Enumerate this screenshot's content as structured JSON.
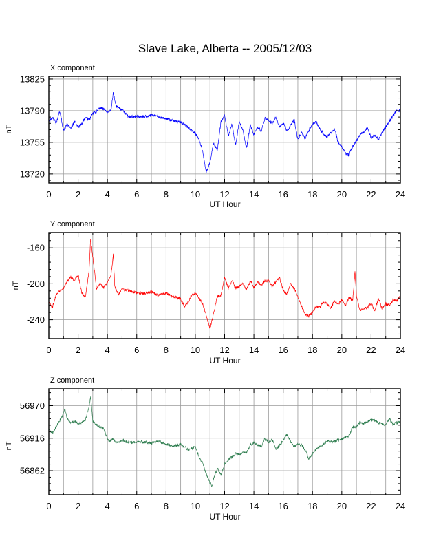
{
  "title": "Slave Lake, Alberta -- 2005/12/03",
  "chart_data": [
    {
      "type": "line",
      "panel_title": "X component",
      "xlabel": "UT Hour",
      "ylabel": "nT",
      "xlim": [
        0,
        24
      ],
      "ylim": [
        13710,
        13828
      ],
      "xticks": [
        0,
        2,
        4,
        6,
        8,
        10,
        12,
        14,
        16,
        18,
        20,
        22,
        24
      ],
      "yticks": [
        13825,
        13790,
        13755,
        13720
      ],
      "grid": true,
      "color": "#0000ff",
      "series": [
        {
          "x": [
            0,
            0.25,
            0.5,
            0.75,
            1,
            1.25,
            1.5,
            1.75,
            2,
            2.25,
            2.5,
            2.75,
            3,
            3.25,
            3.5,
            3.75,
            4,
            4.25,
            4.4,
            4.6,
            5,
            5.5,
            6,
            6.5,
            7,
            7.5,
            8,
            8.5,
            9,
            9.5,
            10,
            10.25,
            10.5,
            10.75,
            11,
            11.25,
            11.5,
            11.75,
            12,
            12.25,
            12.5,
            12.75,
            13,
            13.25,
            13.5,
            13.75,
            14,
            14.25,
            14.5,
            14.75,
            15,
            15.25,
            15.5,
            15.75,
            16,
            16.25,
            16.5,
            16.75,
            17,
            17.25,
            17.5,
            17.75,
            18,
            18.25,
            18.5,
            18.75,
            19,
            19.25,
            19.5,
            19.75,
            20,
            20.25,
            20.5,
            20.75,
            21,
            21.25,
            21.5,
            21.75,
            22,
            22.25,
            22.5,
            22.75,
            23,
            23.25,
            23.5,
            23.75,
            24
          ],
          "values": [
            13777,
            13783,
            13776,
            13790,
            13768,
            13775,
            13770,
            13778,
            13772,
            13776,
            13782,
            13780,
            13787,
            13789,
            13793,
            13792,
            13788,
            13791,
            13810,
            13795,
            13791,
            13783,
            13784,
            13783,
            13785,
            13783,
            13781,
            13779,
            13777,
            13772,
            13765,
            13758,
            13745,
            13722,
            13733,
            13754,
            13746,
            13778,
            13785,
            13762,
            13775,
            13752,
            13778,
            13768,
            13748,
            13774,
            13764,
            13772,
            13767,
            13782,
            13779,
            13776,
            13782,
            13772,
            13777,
            13768,
            13773,
            13780,
            13758,
            13766,
            13760,
            13768,
            13775,
            13778,
            13770,
            13764,
            13761,
            13766,
            13770,
            13755,
            13750,
            13743,
            13741,
            13751,
            13757,
            13764,
            13766,
            13771,
            13760,
            13763,
            13758,
            13766,
            13772,
            13778,
            13784,
            13791,
            13789
          ]
        }
      ]
    },
    {
      "type": "line",
      "panel_title": "Y component",
      "xlabel": "UT Hour",
      "ylabel": "nT",
      "xlim": [
        0,
        24
      ],
      "ylim": [
        -261,
        -143
      ],
      "xticks": [
        0,
        2,
        4,
        6,
        8,
        10,
        12,
        14,
        16,
        18,
        20,
        22,
        24
      ],
      "yticks": [
        -160,
        -200,
        -240
      ],
      "grid": true,
      "color": "#ff0000",
      "series": [
        {
          "x": [
            0,
            0.25,
            0.5,
            0.75,
            1,
            1.25,
            1.5,
            1.75,
            2,
            2.25,
            2.5,
            2.75,
            2.85,
            3,
            3.25,
            3.5,
            3.75,
            4,
            4.25,
            4.4,
            4.5,
            4.75,
            5,
            5.5,
            6,
            6.5,
            7,
            7.5,
            8,
            8.5,
            9,
            9.25,
            9.5,
            9.75,
            10,
            10.25,
            10.5,
            10.75,
            11,
            11.25,
            11.5,
            11.75,
            12,
            12.25,
            12.5,
            12.75,
            13,
            13.25,
            13.5,
            13.75,
            14,
            14.25,
            14.5,
            14.75,
            15,
            15.25,
            15.5,
            15.75,
            16,
            16.25,
            16.5,
            16.75,
            17,
            17.25,
            17.5,
            17.75,
            18,
            18.25,
            18.5,
            18.75,
            19,
            19.25,
            19.5,
            19.75,
            20,
            20.25,
            20.5,
            20.75,
            20.9,
            21,
            21.25,
            21.5,
            21.75,
            22,
            22.25,
            22.5,
            22.75,
            23,
            23.25,
            23.5,
            23.75,
            24
          ],
          "values": [
            -220,
            -226,
            -212,
            -208,
            -205,
            -197,
            -193,
            -196,
            -190,
            -210,
            -215,
            -185,
            -151,
            -170,
            -205,
            -200,
            -204,
            -198,
            -190,
            -167,
            -203,
            -212,
            -206,
            -208,
            -210,
            -211,
            -209,
            -213,
            -210,
            -214,
            -217,
            -225,
            -221,
            -213,
            -210,
            -216,
            -222,
            -235,
            -250,
            -233,
            -214,
            -213,
            -193,
            -205,
            -196,
            -205,
            -203,
            -200,
            -207,
            -197,
            -204,
            -198,
            -201,
            -197,
            -196,
            -203,
            -198,
            -193,
            -207,
            -212,
            -200,
            -205,
            -215,
            -225,
            -233,
            -236,
            -232,
            -225,
            -226,
            -220,
            -222,
            -227,
            -219,
            -223,
            -218,
            -224,
            -215,
            -218,
            -186,
            -213,
            -230,
            -228,
            -226,
            -222,
            -230,
            -216,
            -228,
            -222,
            -225,
            -218,
            -219,
            -214
          ]
        }
      ]
    },
    {
      "type": "line",
      "panel_title": "Z component",
      "xlabel": "UT Hour",
      "ylabel": "nT",
      "xlim": [
        0,
        24
      ],
      "ylim": [
        56822,
        56998
      ],
      "xticks": [
        0,
        2,
        4,
        6,
        8,
        10,
        12,
        14,
        16,
        18,
        20,
        22,
        24
      ],
      "yticks": [
        56970,
        56916,
        56862
      ],
      "grid": true,
      "color": "#2e7d4f",
      "series": [
        {
          "x": [
            0,
            0.25,
            0.5,
            0.75,
            1,
            1.1,
            1.25,
            1.5,
            1.75,
            2,
            2.25,
            2.5,
            2.75,
            2.85,
            3,
            3.25,
            3.5,
            3.75,
            4,
            4.2,
            4.4,
            4.6,
            5,
            5.5,
            6,
            6.5,
            7,
            7.5,
            8,
            8.5,
            9,
            9.5,
            10,
            10.25,
            10.5,
            10.75,
            11,
            11.15,
            11.25,
            11.5,
            11.75,
            12,
            12.25,
            12.5,
            12.75,
            13,
            13.25,
            13.5,
            13.75,
            14,
            14.25,
            14.5,
            14.75,
            15,
            15.25,
            15.5,
            15.75,
            16,
            16.25,
            16.5,
            16.75,
            17,
            17.25,
            17.5,
            17.75,
            18,
            18.25,
            18.5,
            18.75,
            19,
            19.5,
            20,
            20.5,
            20.75,
            21,
            21.25,
            21.5,
            22,
            22.5,
            23,
            23.25,
            23.5,
            23.75,
            24
          ],
          "values": [
            56930,
            56925,
            56935,
            56945,
            56957,
            56965,
            56950,
            56940,
            56945,
            56940,
            56942,
            56947,
            56968,
            56985,
            56945,
            56938,
            56934,
            56932,
            56915,
            56912,
            56915,
            56908,
            56912,
            56909,
            56910,
            56909,
            56908,
            56911,
            56906,
            56903,
            56906,
            56897,
            56902,
            56885,
            56875,
            56855,
            56842,
            56835,
            56850,
            56865,
            56855,
            56873,
            56880,
            56885,
            56890,
            56888,
            56893,
            56892,
            56905,
            56908,
            56905,
            56902,
            56915,
            56909,
            56913,
            56898,
            56904,
            56912,
            56922,
            56911,
            56902,
            56906,
            56905,
            56896,
            56882,
            56890,
            56898,
            56902,
            56905,
            56912,
            56910,
            56915,
            56920,
            56935,
            56935,
            56942,
            56940,
            56947,
            56942,
            56938,
            56948,
            56938,
            56942,
            56943
          ]
        }
      ]
    }
  ]
}
